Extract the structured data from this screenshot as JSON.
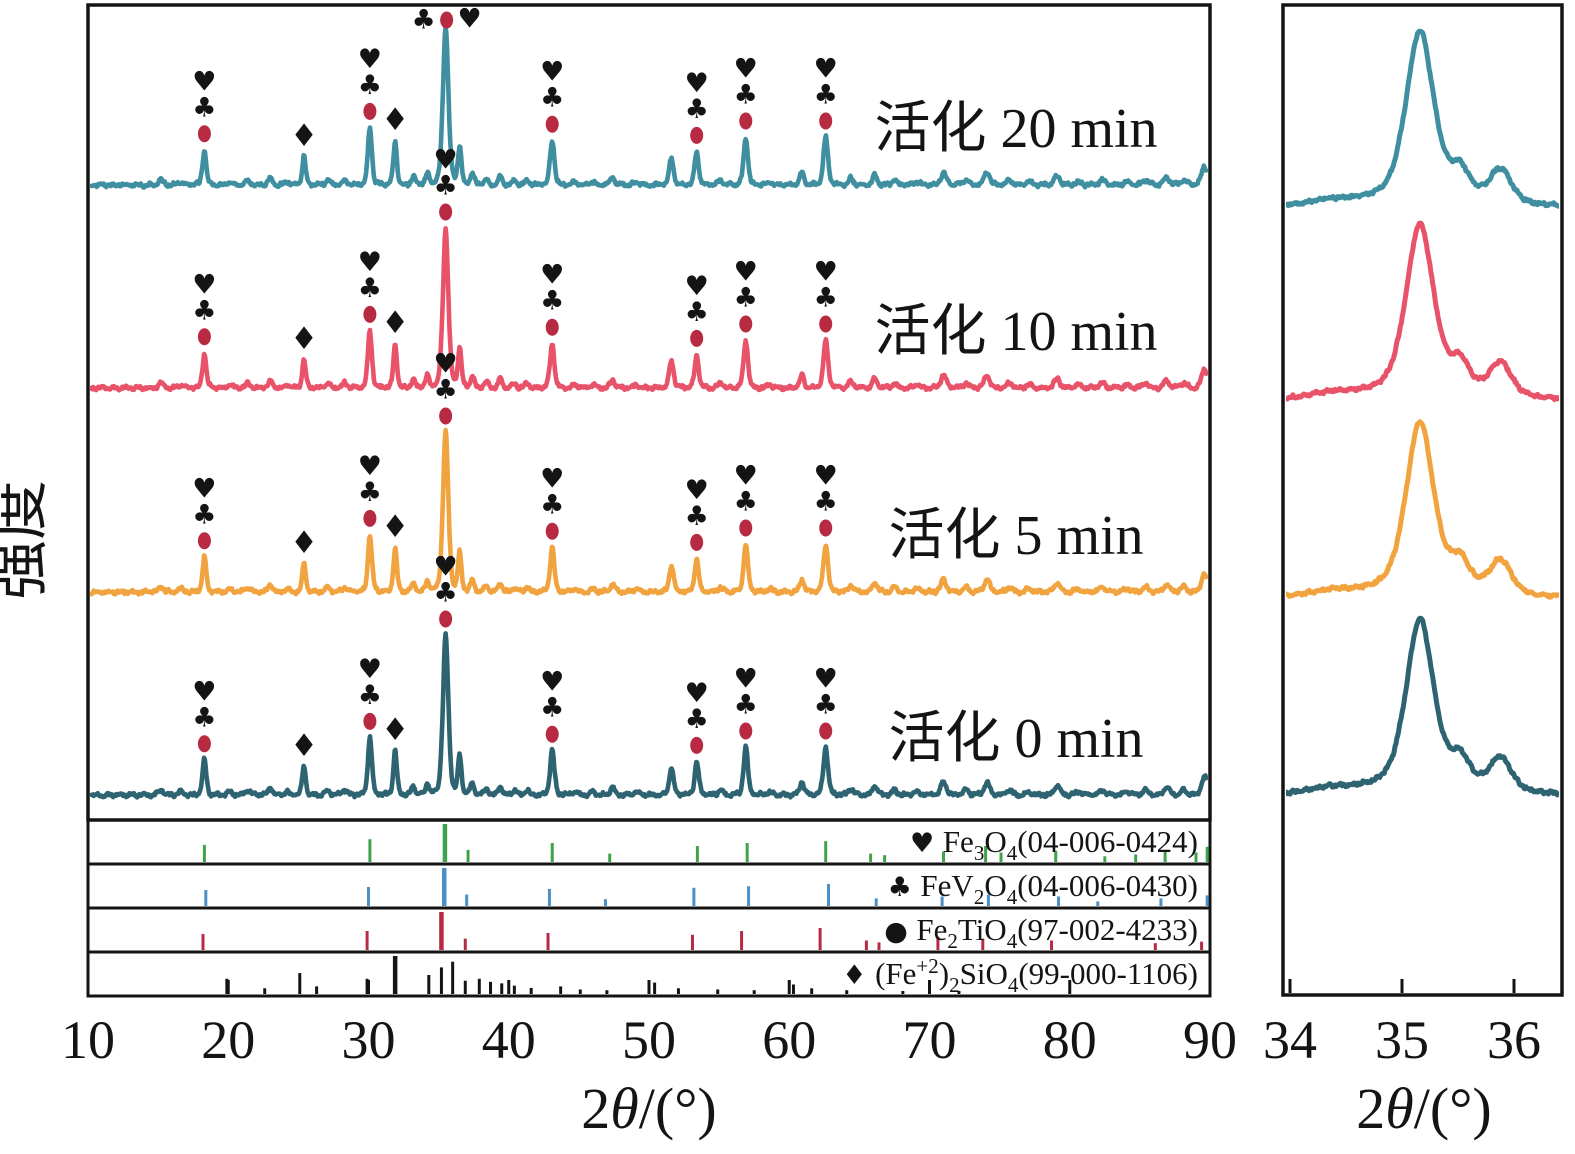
{
  "page": {
    "background": "#ffffff"
  },
  "chart_data": {
    "type": "line",
    "title": "",
    "ylabel": "强度",
    "xlabel": "2θ/(°)",
    "main_panel": {
      "x_range": [
        10,
        90
      ],
      "x_ticks": [
        10,
        20,
        30,
        40,
        50,
        60,
        70,
        80,
        90
      ],
      "xlabel": "2θ/(°)"
    },
    "zoom_panel": {
      "x_range": [
        34,
        36.4
      ],
      "x_ticks": [
        34,
        35,
        36
      ],
      "xlabel": "2θ/(°)"
    },
    "series": [
      {
        "name": "活化 20 min",
        "color": "#3f8fa0"
      },
      {
        "name": "活化 10 min",
        "color": "#e8536a"
      },
      {
        "name": "活化 5 min",
        "color": "#f1a33f"
      },
      {
        "name": "活化 0 min",
        "color": "#2e6371"
      }
    ],
    "peaks_2theta": [
      [
        15.2,
        0.03,
        0.2
      ],
      [
        16.6,
        0.02,
        0.2
      ],
      [
        18.3,
        0.22,
        0.14
      ],
      [
        20.1,
        0.02,
        0.18
      ],
      [
        21.4,
        0.03,
        0.18
      ],
      [
        23.0,
        0.045,
        0.16
      ],
      [
        24.2,
        0.02,
        0.16
      ],
      [
        25.4,
        0.18,
        0.13
      ],
      [
        27.1,
        0.03,
        0.18
      ],
      [
        28.3,
        0.03,
        0.18
      ],
      [
        30.1,
        0.36,
        0.15
      ],
      [
        31.9,
        0.28,
        0.13
      ],
      [
        33.2,
        0.05,
        0.14
      ],
      [
        34.2,
        0.07,
        0.13
      ],
      [
        35.5,
        1.0,
        0.2
      ],
      [
        36.5,
        0.24,
        0.13
      ],
      [
        37.4,
        0.07,
        0.14
      ],
      [
        38.4,
        0.04,
        0.14
      ],
      [
        39.4,
        0.06,
        0.14
      ],
      [
        40.4,
        0.03,
        0.15
      ],
      [
        41.3,
        0.03,
        0.15
      ],
      [
        43.1,
        0.28,
        0.16
      ],
      [
        44.7,
        0.02,
        0.18
      ],
      [
        46.0,
        0.02,
        0.18
      ],
      [
        47.4,
        0.05,
        0.17
      ],
      [
        49.1,
        0.02,
        0.18
      ],
      [
        51.6,
        0.17,
        0.16
      ],
      [
        53.4,
        0.21,
        0.15
      ],
      [
        55.1,
        0.03,
        0.17
      ],
      [
        56.9,
        0.3,
        0.16
      ],
      [
        58.6,
        0.02,
        0.18
      ],
      [
        60.9,
        0.08,
        0.16
      ],
      [
        62.6,
        0.3,
        0.17
      ],
      [
        64.4,
        0.04,
        0.18
      ],
      [
        66.1,
        0.06,
        0.17
      ],
      [
        67.5,
        0.03,
        0.18
      ],
      [
        69.1,
        0.02,
        0.22
      ],
      [
        71.0,
        0.08,
        0.2
      ],
      [
        72.6,
        0.03,
        0.2
      ],
      [
        74.1,
        0.08,
        0.2
      ],
      [
        75.7,
        0.03,
        0.2
      ],
      [
        77.1,
        0.02,
        0.22
      ],
      [
        79.1,
        0.06,
        0.2
      ],
      [
        80.6,
        0.02,
        0.22
      ],
      [
        82.3,
        0.03,
        0.22
      ],
      [
        84.1,
        0.02,
        0.22
      ],
      [
        85.4,
        0.03,
        0.22
      ],
      [
        86.9,
        0.05,
        0.2
      ],
      [
        88.1,
        0.03,
        0.22
      ],
      [
        89.6,
        0.12,
        0.2
      ]
    ],
    "zoom_peaks": [
      [
        34.35,
        0.03,
        0.2
      ],
      [
        35.16,
        1.0,
        0.125
      ],
      [
        35.2,
        0.1,
        0.45
      ],
      [
        35.52,
        0.16,
        0.085
      ],
      [
        35.88,
        0.2,
        0.1
      ]
    ],
    "markers": {
      "heart": {
        "glyph": "♥",
        "color": "#3fa34a"
      },
      "club": {
        "glyph": "♣",
        "color": "#4a90c6"
      },
      "circle": {
        "glyph": "●",
        "color": "#b72a42"
      },
      "diamond": {
        "glyph": "♦",
        "color": "#141414"
      }
    },
    "marked_peaks": [
      {
        "pos": 18.3,
        "stack": [
          "heart",
          "club",
          "circle"
        ]
      },
      {
        "pos": 25.4,
        "stack": [
          "diamond"
        ]
      },
      {
        "pos": 30.1,
        "stack": [
          "heart",
          "club",
          "circle"
        ]
      },
      {
        "pos": 31.9,
        "stack": [
          "diamond"
        ]
      },
      {
        "pos": 35.5,
        "stack": [
          "heart",
          "club",
          "circle"
        ],
        "top_row": true
      },
      {
        "pos": 43.1,
        "stack": [
          "heart",
          "club",
          "circle"
        ]
      },
      {
        "pos": 53.4,
        "stack": [
          "heart",
          "club",
          "circle"
        ]
      },
      {
        "pos": 56.9,
        "stack": [
          "heart",
          "club",
          "circle"
        ]
      },
      {
        "pos": 62.6,
        "stack": [
          "heart",
          "club",
          "circle"
        ]
      }
    ],
    "references": [
      {
        "text": "Fe3O4(04-006-0424)",
        "marker": "heart",
        "color": "#3fa34a",
        "segments": [
          {
            "t": "Fe"
          },
          {
            "t": "3",
            "s": "sub"
          },
          {
            "t": "O"
          },
          {
            "t": "4",
            "s": "sub"
          },
          {
            "t": "(04-006-0424)"
          }
        ],
        "sticks": [
          [
            18.3,
            0.45
          ],
          [
            30.1,
            0.6
          ],
          [
            35.45,
            1.0
          ],
          [
            37.1,
            0.32
          ],
          [
            43.1,
            0.5
          ],
          [
            47.2,
            0.22
          ],
          [
            53.45,
            0.42
          ],
          [
            57.0,
            0.5
          ],
          [
            62.6,
            0.55
          ],
          [
            65.8,
            0.22
          ],
          [
            66.8,
            0.18
          ],
          [
            71.0,
            0.28
          ],
          [
            74.0,
            0.42
          ],
          [
            75.1,
            0.25
          ],
          [
            79.0,
            0.3
          ],
          [
            82.5,
            0.15
          ],
          [
            84.7,
            0.2
          ],
          [
            86.8,
            0.3
          ],
          [
            89.0,
            0.25
          ],
          [
            89.8,
            0.4
          ]
        ]
      },
      {
        "text": "FeV2O4(04-006-0430)",
        "marker": "club",
        "color": "#4a90c6",
        "segments": [
          {
            "t": "FeV"
          },
          {
            "t": "2",
            "s": "sub"
          },
          {
            "t": "O"
          },
          {
            "t": "4",
            "s": "sub"
          },
          {
            "t": "(04-006-0430)"
          }
        ],
        "sticks": [
          [
            18.4,
            0.42
          ],
          [
            30.0,
            0.5
          ],
          [
            35.4,
            1.0
          ],
          [
            37.0,
            0.3
          ],
          [
            42.9,
            0.45
          ],
          [
            46.9,
            0.18
          ],
          [
            53.2,
            0.48
          ],
          [
            57.1,
            0.52
          ],
          [
            62.8,
            0.58
          ],
          [
            66.2,
            0.2
          ],
          [
            70.9,
            0.25
          ],
          [
            74.2,
            0.3
          ],
          [
            79.2,
            0.25
          ],
          [
            82.0,
            0.12
          ],
          [
            86.5,
            0.2
          ],
          [
            89.8,
            0.28
          ]
        ]
      },
      {
        "text": "Fe2TiO4(97-002-4233)",
        "marker": "circle",
        "color": "#b72a42",
        "segments": [
          {
            "t": "Fe"
          },
          {
            "t": "2",
            "s": "sub"
          },
          {
            "t": "TiO"
          },
          {
            "t": "4",
            "s": "sub"
          },
          {
            "t": "(97-002-4233)"
          }
        ],
        "sticks": [
          [
            18.2,
            0.42
          ],
          [
            29.9,
            0.5
          ],
          [
            35.2,
            1.0
          ],
          [
            36.9,
            0.3
          ],
          [
            42.8,
            0.45
          ],
          [
            53.1,
            0.4
          ],
          [
            56.6,
            0.5
          ],
          [
            62.2,
            0.58
          ],
          [
            65.5,
            0.25
          ],
          [
            66.4,
            0.2
          ],
          [
            70.6,
            0.35
          ],
          [
            73.8,
            0.3
          ],
          [
            78.7,
            0.25
          ],
          [
            86.1,
            0.18
          ],
          [
            89.4,
            0.22
          ]
        ]
      },
      {
        "text": "(Fe+2)2SiO4(99-000-1106)",
        "marker": "diamond",
        "color": "#141414",
        "segments": [
          {
            "t": "(Fe"
          },
          {
            "t": "+2",
            "s": "sup"
          },
          {
            "t": ")"
          },
          {
            "t": "2",
            "s": "sub"
          },
          {
            "t": "SiO"
          },
          {
            "t": "4",
            "s": "sub"
          },
          {
            "t": "(99-000-1106)"
          }
        ],
        "sticks": [
          [
            19.9,
            0.4
          ],
          [
            22.6,
            0.15
          ],
          [
            25.1,
            0.55
          ],
          [
            26.3,
            0.2
          ],
          [
            29.9,
            0.4
          ],
          [
            31.9,
            1.0
          ],
          [
            34.3,
            0.5
          ],
          [
            35.2,
            0.7
          ],
          [
            36.0,
            0.85
          ],
          [
            36.9,
            0.35
          ],
          [
            37.9,
            0.4
          ],
          [
            38.7,
            0.32
          ],
          [
            39.5,
            0.28
          ],
          [
            40.4,
            0.22
          ],
          [
            41.6,
            0.16
          ],
          [
            43.7,
            0.2
          ],
          [
            45.1,
            0.12
          ],
          [
            47.0,
            0.1
          ],
          [
            50.4,
            0.3
          ],
          [
            52.1,
            0.15
          ],
          [
            54.9,
            0.12
          ],
          [
            57.5,
            0.1
          ],
          [
            60.3,
            0.25
          ],
          [
            61.6,
            0.15
          ],
          [
            64.1,
            0.1
          ],
          [
            68.1,
            0.08
          ],
          [
            72.1,
            0.08
          ]
        ]
      }
    ]
  }
}
